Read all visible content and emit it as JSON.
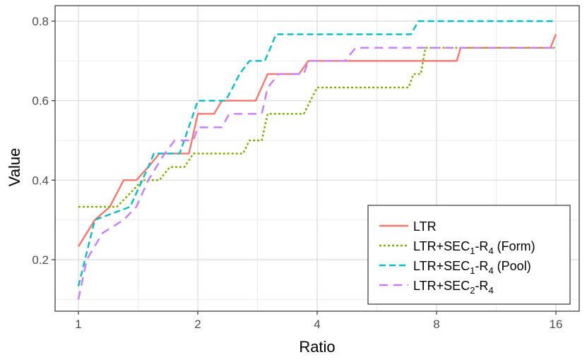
{
  "chart_data": {
    "type": "line",
    "xlabel": "Ratio",
    "ylabel": "Value",
    "x_scale": "log2",
    "xlim": [
      1,
      16
    ],
    "ylim": [
      0.09,
      0.8
    ],
    "x_ticks": [
      {
        "value": 1,
        "label": "1"
      },
      {
        "value": 2,
        "label": "2"
      },
      {
        "value": 4,
        "label": "4"
      },
      {
        "value": 8,
        "label": "8"
      },
      {
        "value": 16,
        "label": "16"
      }
    ],
    "y_ticks": [
      {
        "value": 0.2,
        "label": "0.2"
      },
      {
        "value": 0.4,
        "label": "0.4"
      },
      {
        "value": 0.6,
        "label": "0.6"
      },
      {
        "value": 0.8,
        "label": "0.8"
      }
    ],
    "grid": true,
    "legend_position": "bottom-right",
    "series": [
      {
        "name": "LTR",
        "color": "#f8766d",
        "dash": "solid",
        "points": [
          [
            1.0,
            0.233
          ],
          [
            1.1,
            0.3
          ],
          [
            1.2,
            0.333
          ],
          [
            1.3,
            0.4
          ],
          [
            1.4,
            0.4
          ],
          [
            1.5,
            0.433
          ],
          [
            1.6,
            0.467
          ],
          [
            1.9,
            0.467
          ],
          [
            2.0,
            0.567
          ],
          [
            2.2,
            0.567
          ],
          [
            2.3,
            0.6
          ],
          [
            2.8,
            0.6
          ],
          [
            3.0,
            0.667
          ],
          [
            3.6,
            0.667
          ],
          [
            3.8,
            0.7
          ],
          [
            9.0,
            0.7
          ],
          [
            9.2,
            0.733
          ],
          [
            15.5,
            0.733
          ],
          [
            16.0,
            0.767
          ]
        ]
      },
      {
        "name": "LTR+SEC1-R4 (Form)",
        "legend_main": "LTR+SEC",
        "legend_sub": "1",
        "legend_mid": "-R",
        "legend_sub2": "4",
        "legend_suffix": " (Form)",
        "color": "#7cae00",
        "dash": "dotted",
        "points": [
          [
            1.0,
            0.333
          ],
          [
            1.25,
            0.333
          ],
          [
            1.35,
            0.367
          ],
          [
            1.45,
            0.4
          ],
          [
            1.6,
            0.4
          ],
          [
            1.7,
            0.433
          ],
          [
            1.85,
            0.433
          ],
          [
            1.95,
            0.467
          ],
          [
            2.6,
            0.467
          ],
          [
            2.7,
            0.5
          ],
          [
            2.9,
            0.5
          ],
          [
            3.0,
            0.567
          ],
          [
            3.7,
            0.567
          ],
          [
            4.0,
            0.633
          ],
          [
            6.8,
            0.633
          ],
          [
            7.0,
            0.667
          ],
          [
            7.3,
            0.667
          ],
          [
            7.5,
            0.733
          ],
          [
            16.0,
            0.733
          ]
        ]
      },
      {
        "name": "LTR+SEC1-R4 (Pool)",
        "legend_main": "LTR+SEC",
        "legend_sub": "1",
        "legend_mid": "-R",
        "legend_sub2": "4",
        "legend_suffix": " (Pool)",
        "color": "#00bfc4",
        "dash": "dashed",
        "points": [
          [
            1.0,
            0.133
          ],
          [
            1.1,
            0.3
          ],
          [
            1.35,
            0.333
          ],
          [
            1.5,
            0.433
          ],
          [
            1.55,
            0.467
          ],
          [
            1.8,
            0.467
          ],
          [
            1.95,
            0.567
          ],
          [
            2.0,
            0.6
          ],
          [
            2.35,
            0.6
          ],
          [
            2.45,
            0.633
          ],
          [
            2.55,
            0.667
          ],
          [
            2.7,
            0.7
          ],
          [
            2.95,
            0.7
          ],
          [
            3.05,
            0.733
          ],
          [
            3.15,
            0.767
          ],
          [
            6.9,
            0.767
          ],
          [
            7.2,
            0.8
          ],
          [
            16.0,
            0.8
          ]
        ]
      },
      {
        "name": "LTR+SEC2-R4",
        "legend_main": "LTR+SEC",
        "legend_sub": "2",
        "legend_mid": "-R",
        "legend_sub2": "4",
        "legend_suffix": "",
        "color": "#c77cff",
        "dash": "longdash",
        "points": [
          [
            1.0,
            0.1
          ],
          [
            1.05,
            0.2
          ],
          [
            1.15,
            0.267
          ],
          [
            1.3,
            0.3
          ],
          [
            1.4,
            0.333
          ],
          [
            1.5,
            0.4
          ],
          [
            1.65,
            0.467
          ],
          [
            1.75,
            0.5
          ],
          [
            1.95,
            0.5
          ],
          [
            2.0,
            0.533
          ],
          [
            2.3,
            0.533
          ],
          [
            2.4,
            0.567
          ],
          [
            2.9,
            0.567
          ],
          [
            3.0,
            0.633
          ],
          [
            3.2,
            0.667
          ],
          [
            3.7,
            0.667
          ],
          [
            3.8,
            0.7
          ],
          [
            4.7,
            0.7
          ],
          [
            5.0,
            0.733
          ],
          [
            16.0,
            0.733
          ]
        ]
      }
    ]
  }
}
